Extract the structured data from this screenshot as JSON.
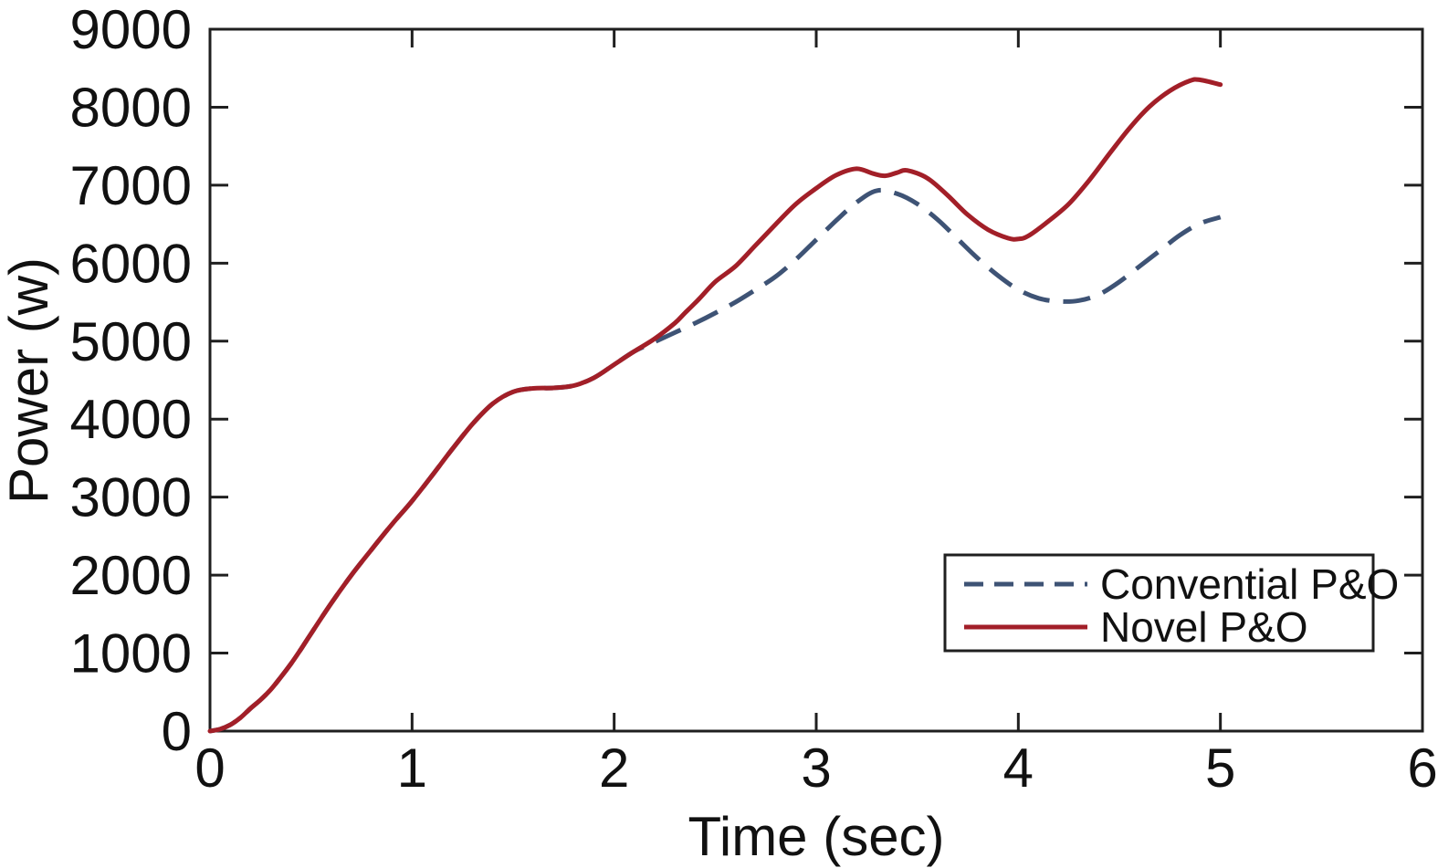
{
  "figure": {
    "background": "#ffffff",
    "frame_color": "#1f1f1f",
    "text_color": "#111111"
  },
  "chart_data": {
    "type": "line",
    "title": "",
    "xlabel": "Time (sec)",
    "ylabel": "Power (w)",
    "xlim": [
      0,
      6
    ],
    "ylim": [
      0,
      9000
    ],
    "xticks": [
      0,
      1,
      2,
      3,
      4,
      5,
      6
    ],
    "yticks": [
      0,
      1000,
      2000,
      3000,
      4000,
      5000,
      6000,
      7000,
      8000,
      9000
    ],
    "grid": false,
    "legend_position": "inside lower right",
    "series": [
      {
        "name": "Convential P&O",
        "color": "#3E5375",
        "style": "dashed",
        "points": [
          [
            0,
            0
          ],
          [
            0.05,
            25
          ],
          [
            0.1,
            80
          ],
          [
            0.15,
            170
          ],
          [
            0.2,
            290
          ],
          [
            0.25,
            400
          ],
          [
            0.3,
            530
          ],
          [
            0.35,
            690
          ],
          [
            0.4,
            860
          ],
          [
            0.45,
            1050
          ],
          [
            0.5,
            1250
          ],
          [
            0.6,
            1640
          ],
          [
            0.7,
            2000
          ],
          [
            0.8,
            2330
          ],
          [
            0.9,
            2650
          ],
          [
            1.0,
            2950
          ],
          [
            1.1,
            3280
          ],
          [
            1.2,
            3620
          ],
          [
            1.3,
            3940
          ],
          [
            1.4,
            4200
          ],
          [
            1.5,
            4350
          ],
          [
            1.6,
            4395
          ],
          [
            1.7,
            4400
          ],
          [
            1.8,
            4430
          ],
          [
            1.9,
            4530
          ],
          [
            2.0,
            4700
          ],
          [
            2.1,
            4870
          ],
          [
            2.2,
            4990
          ],
          [
            2.3,
            5110
          ],
          [
            2.4,
            5230
          ],
          [
            2.5,
            5360
          ],
          [
            2.6,
            5500
          ],
          [
            2.7,
            5660
          ],
          [
            2.8,
            5830
          ],
          [
            2.9,
            6050
          ],
          [
            3.0,
            6300
          ],
          [
            3.1,
            6550
          ],
          [
            3.2,
            6780
          ],
          [
            3.3,
            6930
          ],
          [
            3.4,
            6890
          ],
          [
            3.5,
            6760
          ],
          [
            3.6,
            6560
          ],
          [
            3.7,
            6310
          ],
          [
            3.8,
            6060
          ],
          [
            3.9,
            5840
          ],
          [
            4.0,
            5660
          ],
          [
            4.1,
            5550
          ],
          [
            4.2,
            5510
          ],
          [
            4.3,
            5520
          ],
          [
            4.4,
            5600
          ],
          [
            4.5,
            5760
          ],
          [
            4.6,
            5960
          ],
          [
            4.7,
            6160
          ],
          [
            4.8,
            6360
          ],
          [
            4.9,
            6510
          ],
          [
            5.0,
            6590
          ]
        ]
      },
      {
        "name": "Novel P&O",
        "color": "#A21F28",
        "style": "solid",
        "points": [
          [
            0,
            0
          ],
          [
            0.05,
            25
          ],
          [
            0.1,
            80
          ],
          [
            0.15,
            170
          ],
          [
            0.2,
            290
          ],
          [
            0.25,
            400
          ],
          [
            0.3,
            530
          ],
          [
            0.35,
            690
          ],
          [
            0.4,
            860
          ],
          [
            0.45,
            1050
          ],
          [
            0.5,
            1250
          ],
          [
            0.6,
            1640
          ],
          [
            0.7,
            2000
          ],
          [
            0.8,
            2330
          ],
          [
            0.9,
            2650
          ],
          [
            1.0,
            2950
          ],
          [
            1.1,
            3280
          ],
          [
            1.2,
            3620
          ],
          [
            1.3,
            3940
          ],
          [
            1.4,
            4200
          ],
          [
            1.5,
            4350
          ],
          [
            1.6,
            4395
          ],
          [
            1.7,
            4400
          ],
          [
            1.8,
            4430
          ],
          [
            1.9,
            4530
          ],
          [
            2.0,
            4700
          ],
          [
            2.1,
            4870
          ],
          [
            2.2,
            5030
          ],
          [
            2.3,
            5230
          ],
          [
            2.35,
            5360
          ],
          [
            2.42,
            5540
          ],
          [
            2.5,
            5760
          ],
          [
            2.6,
            5960
          ],
          [
            2.7,
            6230
          ],
          [
            2.8,
            6500
          ],
          [
            2.9,
            6760
          ],
          [
            3.0,
            6960
          ],
          [
            3.1,
            7130
          ],
          [
            3.2,
            7210
          ],
          [
            3.28,
            7150
          ],
          [
            3.34,
            7120
          ],
          [
            3.4,
            7160
          ],
          [
            3.45,
            7190
          ],
          [
            3.55,
            7090
          ],
          [
            3.65,
            6870
          ],
          [
            3.75,
            6620
          ],
          [
            3.85,
            6430
          ],
          [
            3.95,
            6320
          ],
          [
            4.0,
            6310
          ],
          [
            4.05,
            6350
          ],
          [
            4.15,
            6540
          ],
          [
            4.25,
            6760
          ],
          [
            4.35,
            7060
          ],
          [
            4.45,
            7400
          ],
          [
            4.55,
            7730
          ],
          [
            4.65,
            8010
          ],
          [
            4.75,
            8210
          ],
          [
            4.85,
            8340
          ],
          [
            4.9,
            8350
          ],
          [
            5.0,
            8290
          ]
        ]
      }
    ]
  }
}
